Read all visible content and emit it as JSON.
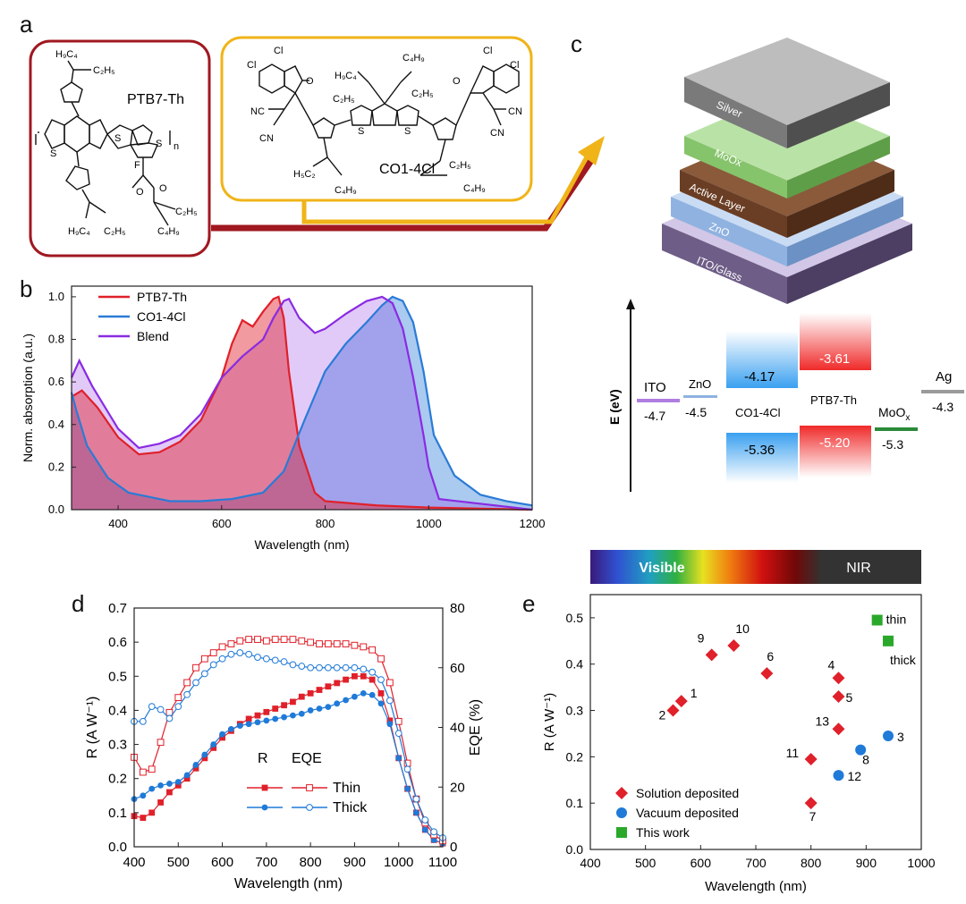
{
  "panels": {
    "a": {
      "label": "a",
      "ptb7": {
        "name": "PTB7-Th",
        "h9c4": "H₉C₄",
        "c2h5": "C₂H₅",
        "f": "F",
        "o": "O",
        "s": "S",
        "n": "n",
        "c4h9": "C₄H₉"
      },
      "co1": {
        "name": "CO1-4Cl",
        "cl": "Cl",
        "nc": "NC",
        "cn": "CN",
        "o": "O",
        "h9c4": "H₉C₄",
        "c2h5": "C₂H₅",
        "h5c2": "H₅C₂",
        "c4h9": "C₄H₉",
        "s": "S"
      }
    },
    "b": {
      "label": "b"
    },
    "c": {
      "label": "c",
      "stack": [
        "Silver",
        "MoOx",
        "Active Layer",
        "ZnO",
        "ITO/Glass"
      ],
      "colors": {
        "silver": "#6e6e6e",
        "moox": "#8fcf7a",
        "active": "#7a4a2e",
        "zno": "#9fc0e6",
        "ito": "#8d78a8"
      },
      "energy": {
        "axis_label": "E (eV)",
        "ito": {
          "name": "ITO",
          "value": "-4.7"
        },
        "zno": {
          "name": "ZnO",
          "value": "-4.5"
        },
        "co1": {
          "name": "CO1-4Cl",
          "lumo": "-4.17",
          "homo": "-5.36"
        },
        "ptb7": {
          "name": "PTB7-Th",
          "lumo": "-3.61",
          "homo": "-5.20"
        },
        "moox": {
          "name": "MoO",
          "sub": "x",
          "value": "-5.3"
        },
        "ag": {
          "name": "Ag",
          "value": "-4.3"
        }
      }
    },
    "d": {
      "label": "d"
    },
    "e": {
      "label": "e"
    }
  },
  "chart_data": [
    {
      "id": "b",
      "type": "area",
      "xlabel": "Wavelength (nm)",
      "ylabel": "Norm. absorption (a.u.)",
      "xlim": [
        310,
        1200
      ],
      "ylim": [
        0,
        1.05
      ],
      "xticks": [
        "400",
        "600",
        "800",
        "1000",
        "1200"
      ],
      "yticks": [
        "0.0",
        "0.2",
        "0.4",
        "0.6",
        "0.8",
        "1.0"
      ],
      "legend": [
        "PTB7-Th",
        "CO1-4Cl",
        "Blend"
      ],
      "series": [
        {
          "name": "PTB7-Th",
          "color": "#e0202a",
          "x": [
            310,
            330,
            360,
            400,
            440,
            480,
            520,
            560,
            600,
            620,
            640,
            660,
            680,
            700,
            710,
            720,
            730,
            750,
            780,
            800,
            850,
            900,
            1000,
            1200
          ],
          "y": [
            0.53,
            0.56,
            0.48,
            0.34,
            0.26,
            0.27,
            0.32,
            0.42,
            0.62,
            0.78,
            0.89,
            0.86,
            0.93,
            0.99,
            1.0,
            0.9,
            0.65,
            0.3,
            0.08,
            0.04,
            0.03,
            0.02,
            0.01,
            0.0
          ]
        },
        {
          "name": "CO1-4Cl",
          "color": "#2a7bd6",
          "x": [
            310,
            320,
            340,
            380,
            420,
            460,
            500,
            560,
            620,
            680,
            720,
            760,
            800,
            840,
            880,
            910,
            930,
            950,
            970,
            990,
            1010,
            1050,
            1100,
            1150,
            1200
          ],
          "y": [
            0.55,
            0.46,
            0.3,
            0.15,
            0.08,
            0.06,
            0.04,
            0.04,
            0.05,
            0.08,
            0.18,
            0.42,
            0.65,
            0.78,
            0.88,
            0.96,
            1.0,
            0.98,
            0.88,
            0.65,
            0.35,
            0.16,
            0.07,
            0.04,
            0.02
          ]
        },
        {
          "name": "Blend",
          "color": "#8a2be2",
          "x": [
            310,
            325,
            350,
            400,
            440,
            480,
            520,
            560,
            600,
            640,
            680,
            700,
            720,
            730,
            750,
            780,
            800,
            840,
            880,
            910,
            930,
            950,
            970,
            990,
            1000,
            1020,
            1200
          ],
          "y": [
            0.62,
            0.7,
            0.58,
            0.38,
            0.29,
            0.31,
            0.35,
            0.45,
            0.62,
            0.72,
            0.8,
            0.9,
            0.98,
            0.99,
            0.9,
            0.83,
            0.85,
            0.92,
            0.98,
            1.0,
            0.97,
            0.85,
            0.62,
            0.35,
            0.2,
            0.05,
            0.0
          ]
        }
      ]
    },
    {
      "id": "d",
      "type": "line",
      "xlabel": "Wavelength (nm)",
      "ylabel": "R (A W⁻¹)",
      "ylabel_right": "EQE (%)",
      "xlim": [
        400,
        1100
      ],
      "ylim": [
        0,
        0.7
      ],
      "ylim_right": [
        0,
        80
      ],
      "xticks": [
        "400",
        "500",
        "600",
        "700",
        "800",
        "900",
        "1000",
        "1100"
      ],
      "yticks": [
        "0.0",
        "0.1",
        "0.2",
        "0.3",
        "0.4",
        "0.5",
        "0.6",
        "0.7"
      ],
      "yticks_right": [
        "0",
        "20",
        "40",
        "60",
        "80"
      ],
      "legend": {
        "col_r": "R",
        "col_eqe": "EQE",
        "rows": [
          "Thin",
          "Thick"
        ]
      },
      "series": [
        {
          "name": "R Thin",
          "axis": "left",
          "marker": "square-filled",
          "color": "#e0202a",
          "x": [
            400,
            420,
            440,
            460,
            480,
            500,
            520,
            540,
            560,
            580,
            600,
            620,
            640,
            660,
            680,
            700,
            720,
            740,
            760,
            780,
            800,
            820,
            840,
            860,
            880,
            900,
            920,
            940,
            960,
            980,
            1000,
            1020,
            1040,
            1060,
            1080,
            1100
          ],
          "y": [
            0.09,
            0.085,
            0.1,
            0.13,
            0.16,
            0.18,
            0.2,
            0.23,
            0.26,
            0.29,
            0.32,
            0.34,
            0.36,
            0.375,
            0.385,
            0.395,
            0.405,
            0.415,
            0.425,
            0.44,
            0.45,
            0.46,
            0.47,
            0.48,
            0.49,
            0.5,
            0.5,
            0.49,
            0.45,
            0.37,
            0.26,
            0.17,
            0.1,
            0.05,
            0.02,
            0.01
          ]
        },
        {
          "name": "R Thick",
          "axis": "left",
          "marker": "circle-filled",
          "color": "#1f7ad8",
          "x": [
            400,
            420,
            440,
            460,
            480,
            500,
            520,
            540,
            560,
            580,
            600,
            620,
            640,
            660,
            680,
            700,
            720,
            740,
            760,
            780,
            800,
            820,
            840,
            860,
            880,
            900,
            920,
            940,
            960,
            980,
            1000,
            1020,
            1040,
            1060,
            1080,
            1100
          ],
          "y": [
            0.14,
            0.15,
            0.17,
            0.18,
            0.185,
            0.19,
            0.21,
            0.24,
            0.27,
            0.3,
            0.33,
            0.345,
            0.355,
            0.36,
            0.365,
            0.37,
            0.375,
            0.38,
            0.385,
            0.39,
            0.4,
            0.405,
            0.41,
            0.42,
            0.43,
            0.44,
            0.45,
            0.445,
            0.42,
            0.36,
            0.26,
            0.17,
            0.1,
            0.05,
            0.02,
            0.01
          ]
        },
        {
          "name": "EQE Thin",
          "axis": "right",
          "marker": "square-open",
          "color": "#e0202a",
          "x": [
            400,
            420,
            440,
            460,
            480,
            500,
            520,
            540,
            560,
            580,
            600,
            620,
            640,
            660,
            680,
            700,
            720,
            740,
            760,
            780,
            800,
            820,
            840,
            860,
            880,
            900,
            920,
            940,
            960,
            980,
            1000,
            1020,
            1040,
            1060,
            1080,
            1100
          ],
          "y": [
            30,
            25,
            26,
            35,
            45,
            50,
            55,
            60,
            63,
            65,
            67,
            68,
            69,
            69.5,
            69.5,
            69,
            69.5,
            69.5,
            69.5,
            69,
            68.5,
            68,
            68,
            68,
            68,
            67.5,
            67,
            66,
            63,
            55,
            42,
            28,
            16,
            8,
            4,
            2
          ]
        },
        {
          "name": "EQE Thick",
          "axis": "right",
          "marker": "circle-open",
          "color": "#1f7ad8",
          "x": [
            400,
            420,
            440,
            460,
            480,
            500,
            520,
            540,
            560,
            580,
            600,
            620,
            640,
            660,
            680,
            700,
            720,
            740,
            760,
            780,
            800,
            820,
            840,
            860,
            880,
            900,
            920,
            940,
            960,
            980,
            1000,
            1020,
            1040,
            1060,
            1080,
            1100
          ],
          "y": [
            42,
            42,
            47,
            46,
            43,
            47,
            51,
            55,
            58,
            61,
            63,
            64.5,
            65,
            64.5,
            63.5,
            63,
            62.5,
            62,
            61,
            60.5,
            60,
            60,
            60,
            60,
            60,
            60,
            59.5,
            58.5,
            56,
            49,
            38,
            26,
            16,
            9,
            5,
            3
          ]
        }
      ]
    },
    {
      "id": "e",
      "type": "scatter",
      "xlabel": "Wavelength (nm)",
      "ylabel": "R (A W⁻¹)",
      "xlim": [
        400,
        1000
      ],
      "ylim": [
        0,
        0.55
      ],
      "xticks": [
        "400",
        "500",
        "600",
        "700",
        "800",
        "900",
        "1000"
      ],
      "yticks": [
        "0.0",
        "0.1",
        "0.2",
        "0.3",
        "0.4",
        "0.5"
      ],
      "spectrum_bar": {
        "visible": "Visible",
        "nir": "NIR"
      },
      "legend": [
        "Solution deposited",
        "Vacuum deposited",
        "This work"
      ],
      "series": [
        {
          "name": "Solution deposited",
          "marker": "diamond",
          "color": "#e0202a",
          "points": [
            {
              "label": "1",
              "x": 565,
              "y": 0.32
            },
            {
              "label": "2",
              "x": 550,
              "y": 0.3
            },
            {
              "label": "4",
              "x": 850,
              "y": 0.37
            },
            {
              "label": "5",
              "x": 850,
              "y": 0.33
            },
            {
              "label": "6",
              "x": 720,
              "y": 0.38
            },
            {
              "label": "7",
              "x": 800,
              "y": 0.1
            },
            {
              "label": "9",
              "x": 620,
              "y": 0.42
            },
            {
              "label": "10",
              "x": 660,
              "y": 0.44
            },
            {
              "label": "11",
              "x": 800,
              "y": 0.195
            },
            {
              "label": "13",
              "x": 850,
              "y": 0.26
            }
          ]
        },
        {
          "name": "Vacuum deposited",
          "marker": "circle",
          "color": "#1f7ad8",
          "points": [
            {
              "label": "3",
              "x": 940,
              "y": 0.245
            },
            {
              "label": "8",
              "x": 890,
              "y": 0.215
            },
            {
              "label": "12",
              "x": 850,
              "y": 0.16
            }
          ]
        },
        {
          "name": "This work",
          "marker": "square",
          "color": "#2aa82a",
          "points": [
            {
              "label": "thin",
              "x": 920,
              "y": 0.495
            },
            {
              "label": "thick",
              "x": 940,
              "y": 0.45
            }
          ]
        }
      ]
    }
  ]
}
